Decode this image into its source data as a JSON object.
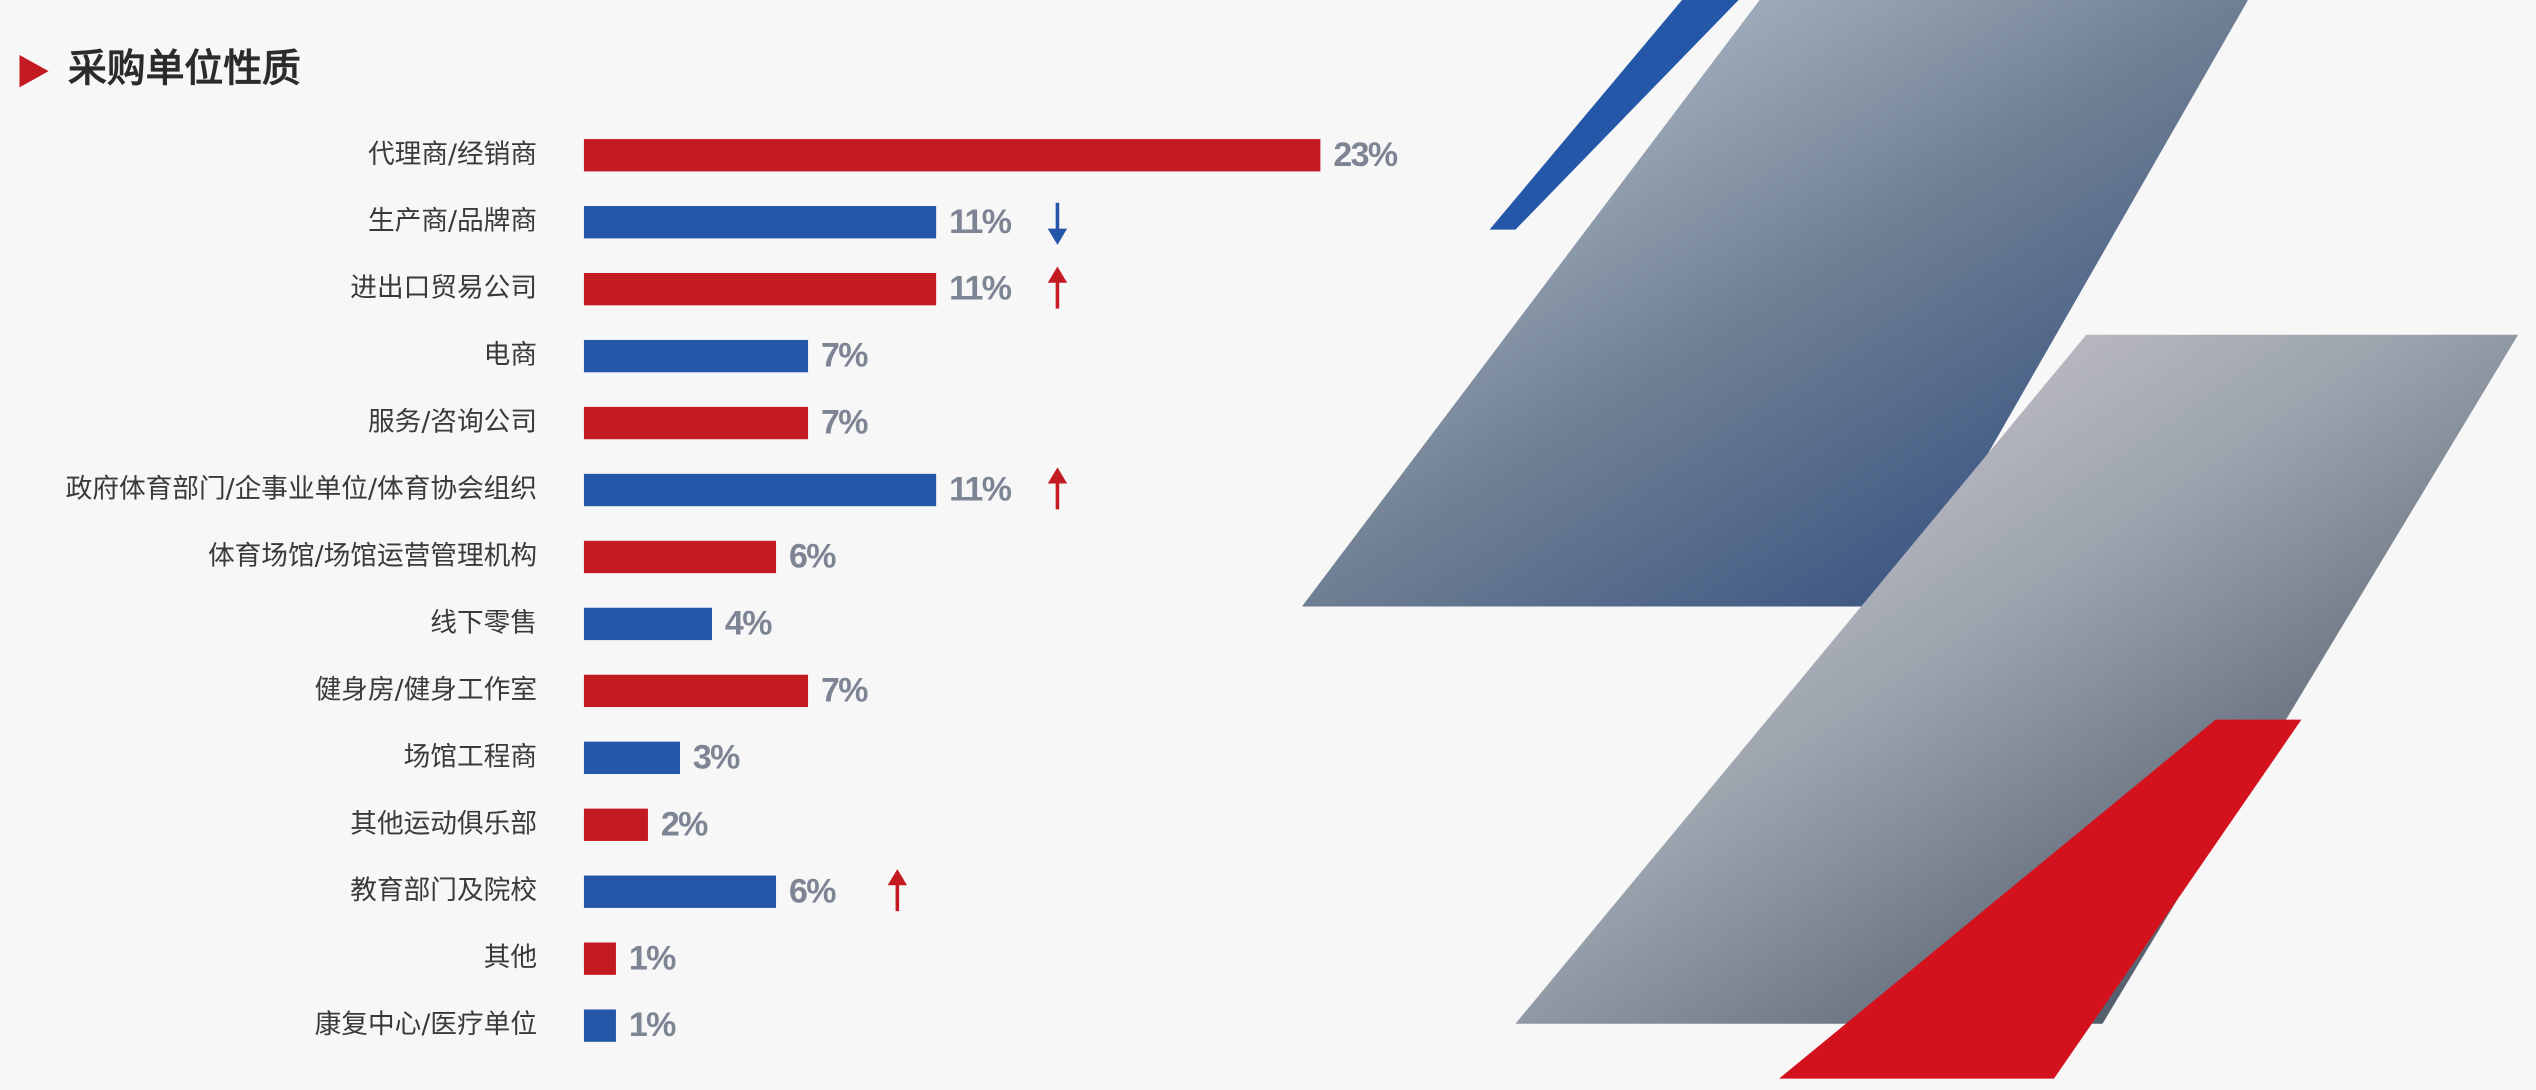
{
  "chart_data": {
    "type": "bar",
    "orientation": "horizontal",
    "title": "采购单位性质",
    "categories": [
      "代理商/经销商",
      "生产商/品牌商",
      "进出口贸易公司",
      "电商",
      "服务/咨询公司",
      "政府体育部门/企事业单位/体育协会组织",
      "体育场馆/场馆运营管理机构",
      "线下零售",
      "健身房/健身工作室",
      "场馆工程商",
      "其他运动俱乐部",
      "教育部门及院校",
      "其他",
      "康复中心/医疗单位"
    ],
    "values": [
      23,
      11,
      11,
      7,
      7,
      11,
      6,
      4,
      7,
      3,
      2,
      6,
      1,
      1
    ],
    "value_labels": [
      "23%",
      "11%",
      "11%",
      "7%",
      "7%",
      "11%",
      "6%",
      "4%",
      "7%",
      "3%",
      "2%",
      "6%",
      "1%",
      "1%"
    ],
    "colors": [
      "#c41a22",
      "#2457a8",
      "#c41a22",
      "#2457a8",
      "#c41a22",
      "#2457a8",
      "#c41a22",
      "#2457a8",
      "#c41a22",
      "#2457a8",
      "#c41a22",
      "#2457a8",
      "#c41a22",
      "#2457a8"
    ],
    "trend": [
      null,
      "down",
      "up",
      null,
      null,
      "up",
      null,
      null,
      null,
      null,
      null,
      "up",
      null,
      null
    ],
    "trend_colors": {
      "up": "#c41a22",
      "down": "#2457a8"
    }
  }
}
